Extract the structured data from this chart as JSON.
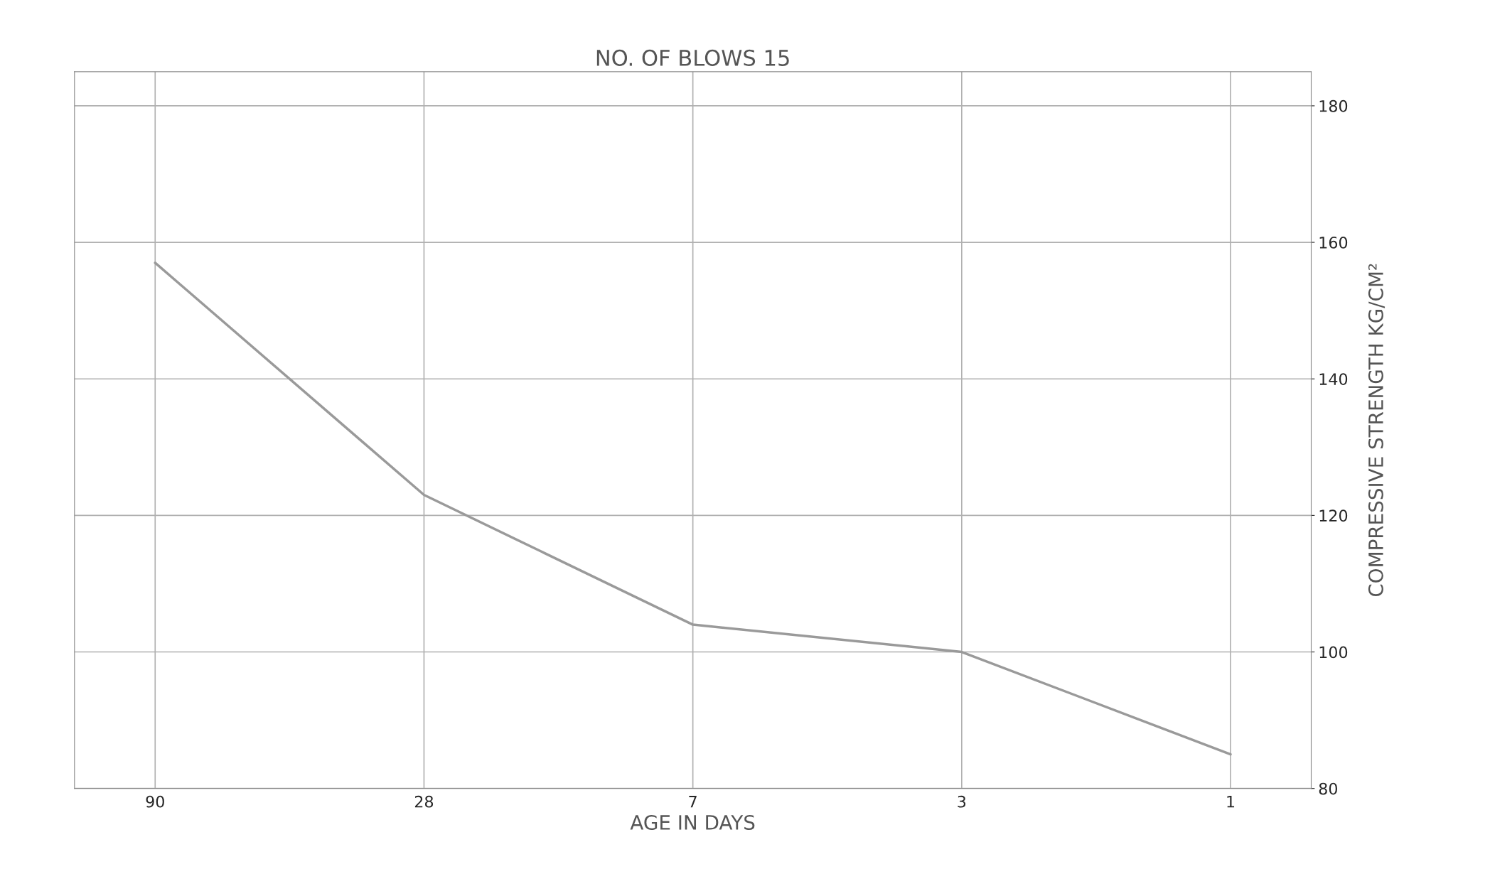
{
  "chart_data": {
    "type": "line",
    "title": "NO. OF BLOWS 15",
    "xlabel": "AGE IN DAYS",
    "ylabel": "COMPRESSIVE STRENGTH KG/CM²",
    "categories": [
      "90",
      "28",
      "7",
      "3",
      "1"
    ],
    "series": [
      {
        "color": "#9a9a9a",
        "values": [
          157,
          123,
          104,
          100,
          85
        ]
      }
    ],
    "ylim": [
      80,
      185
    ],
    "yticks": [
      80,
      100,
      120,
      140,
      160,
      180
    ],
    "grid": true,
    "marker": "none",
    "line_style": "solid"
  }
}
